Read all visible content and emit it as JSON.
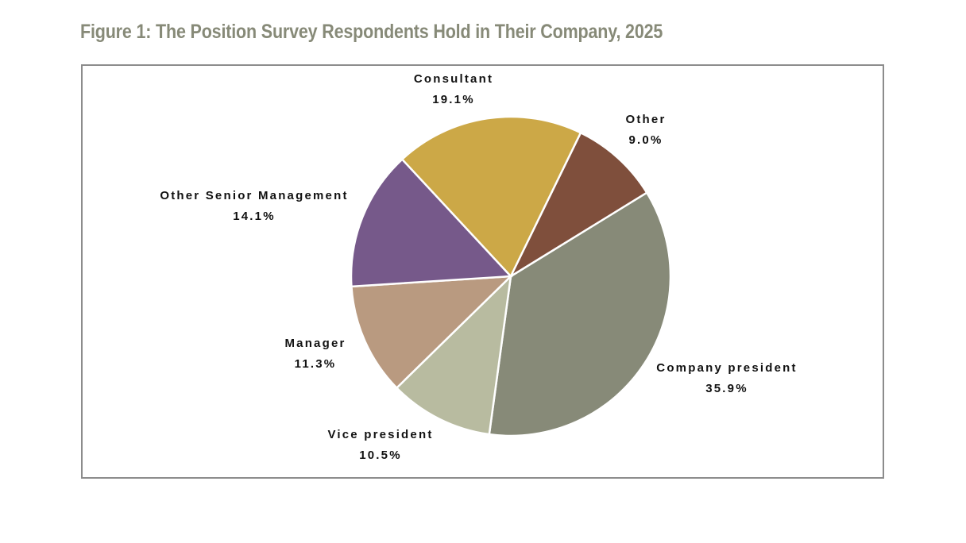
{
  "title": "Figure 1: The Position Survey Respondents Hold in Their Company, 2025",
  "chart_data": {
    "type": "pie",
    "title": "Figure 1: The Position Survey Respondents Hold in Their Company, 2025",
    "start_angle_deg_clockwise_from_top": 58.4,
    "slices": [
      {
        "label": "Company president",
        "value": 35.9,
        "value_label": "35.9%",
        "color": "#878a78"
      },
      {
        "label": "Vice president",
        "value": 10.5,
        "value_label": "10.5%",
        "color": "#b8bba0"
      },
      {
        "label": "Manager",
        "value": 11.3,
        "value_label": "11.3%",
        "color": "#b99a80"
      },
      {
        "label": "Other Senior Management",
        "value": 14.1,
        "value_label": "14.1%",
        "color": "#76598a"
      },
      {
        "label": "Consultant",
        "value": 19.1,
        "value_label": "19.1%",
        "color": "#cca847"
      },
      {
        "label": "Other",
        "value": 9.0,
        "value_label": "9.0%",
        "color": "#7f4f3c"
      }
    ]
  }
}
